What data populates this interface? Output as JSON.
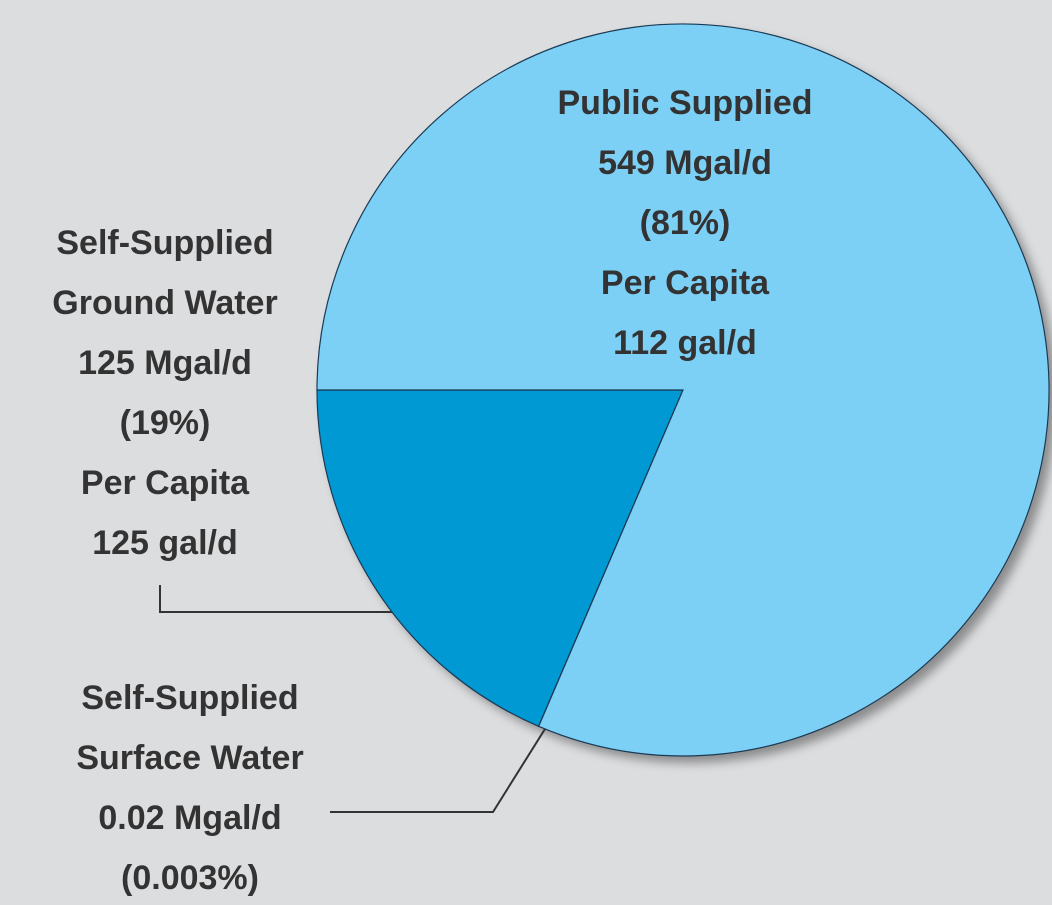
{
  "chart_data": {
    "type": "pie",
    "categories": [
      "Self-Supplied Ground Water",
      "Self-Supplied Surface Water",
      "Public Supplied"
    ],
    "label_lines": [
      [
        "Self-Supplied",
        "Ground Water"
      ],
      [
        "Self-Supplied",
        "Surface Water"
      ],
      [
        "Public Supplied"
      ]
    ],
    "values": [
      125,
      0.02,
      549
    ],
    "value_labels": [
      "125 Mgal/d",
      "0.02 Mgal/d",
      "549 Mgal/d"
    ],
    "percents": [
      19,
      0.003,
      81
    ],
    "percent_labels": [
      "(19%)",
      "(0.003%)",
      "(81%)"
    ],
    "per_capita": {
      "label": "Per Capita",
      "values": [
        125,
        null,
        112
      ],
      "value_labels": [
        "125 gal/d",
        null,
        "112 gal/d"
      ]
    },
    "colors": [
      "#0099d4",
      "#dccfa6",
      "#7dd0f5"
    ]
  }
}
